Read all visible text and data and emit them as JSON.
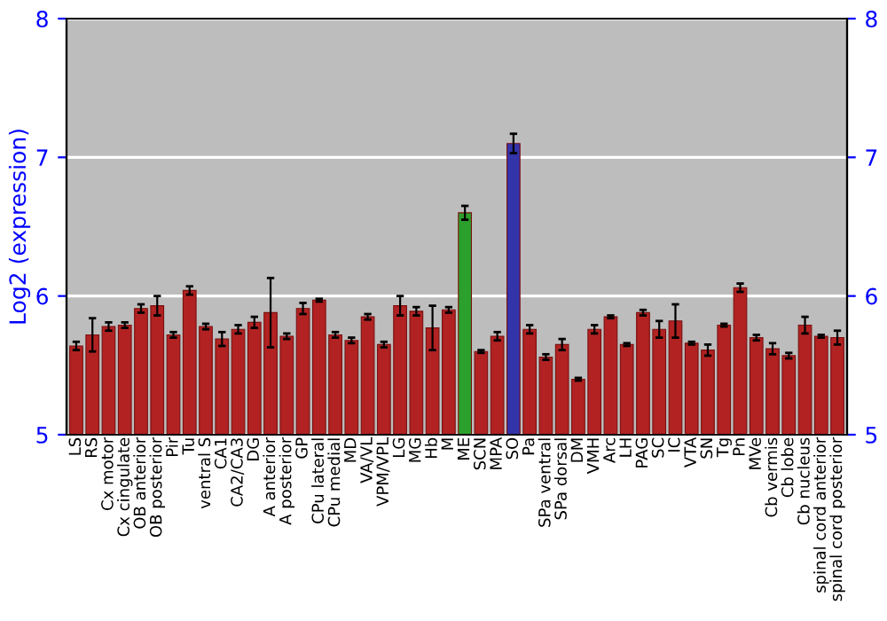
{
  "chart_data": {
    "type": "bar",
    "ylabel": "Log2 (expression)",
    "categories": [
      "LS",
      "RS",
      "Cx motor",
      "Cx cingulate",
      "OB anterior",
      "OB posterior",
      "Pir",
      "Tu",
      "ventral S",
      "CA1",
      "CA2/CA3",
      "DG",
      "A anterior",
      "A posterior",
      "GP",
      "CPu lateral",
      "CPu medial",
      "MD",
      "VA/VL",
      "VPM/VPL",
      "LG",
      "MG",
      "Hb",
      "M",
      "ME",
      "SCN",
      "MPA",
      "SO",
      "Pa",
      "SPa ventral",
      "SPa dorsal",
      "DM",
      "VMH",
      "Arc",
      "LH",
      "PAG",
      "SC",
      "IC",
      "VTA",
      "SN",
      "Tg",
      "Pn",
      "MVe",
      "Cb vermis",
      "Cb lobe",
      "Cb nucleus",
      "spinal cord anterior",
      "spinal cord posterior"
    ],
    "values": [
      5.64,
      5.72,
      5.78,
      5.79,
      5.91,
      5.93,
      5.72,
      6.04,
      5.78,
      5.69,
      5.76,
      5.81,
      5.88,
      5.71,
      5.91,
      5.97,
      5.72,
      5.68,
      5.85,
      5.65,
      5.93,
      5.89,
      5.77,
      5.9,
      6.6,
      5.6,
      5.71,
      7.1,
      5.76,
      5.56,
      5.65,
      5.4,
      5.76,
      5.85,
      5.65,
      5.88,
      5.76,
      5.82,
      5.66,
      5.61,
      5.79,
      6.06,
      5.7,
      5.62,
      5.57,
      5.79,
      5.71,
      5.7
    ],
    "errors": [
      0.03,
      0.12,
      0.03,
      0.02,
      0.03,
      0.07,
      0.02,
      0.03,
      0.02,
      0.05,
      0.03,
      0.04,
      0.25,
      0.02,
      0.04,
      0.01,
      0.02,
      0.02,
      0.02,
      0.02,
      0.07,
      0.03,
      0.16,
      0.02,
      0.05,
      0.01,
      0.03,
      0.07,
      0.03,
      0.02,
      0.04,
      0.01,
      0.03,
      0.01,
      0.01,
      0.02,
      0.06,
      0.12,
      0.01,
      0.04,
      0.01,
      0.03,
      0.02,
      0.04,
      0.02,
      0.06,
      0.01,
      0.05
    ],
    "colors": [
      "#b22222",
      "#b22222",
      "#b22222",
      "#b22222",
      "#b22222",
      "#b22222",
      "#b22222",
      "#b22222",
      "#b22222",
      "#b22222",
      "#b22222",
      "#b22222",
      "#b22222",
      "#b22222",
      "#b22222",
      "#b22222",
      "#b22222",
      "#b22222",
      "#b22222",
      "#b22222",
      "#b22222",
      "#b22222",
      "#b22222",
      "#b22222",
      "#2ca02c",
      "#b22222",
      "#b22222",
      "#3333aa",
      "#b22222",
      "#b22222",
      "#b22222",
      "#b22222",
      "#b22222",
      "#b22222",
      "#b22222",
      "#b22222",
      "#b22222",
      "#b22222",
      "#b22222",
      "#b22222",
      "#b22222",
      "#b22222",
      "#b22222",
      "#b22222",
      "#b22222",
      "#b22222",
      "#b22222",
      "#b22222"
    ],
    "ylim": [
      5,
      8
    ],
    "yticks": [
      5,
      6,
      7,
      8
    ],
    "y2lim": [
      5,
      8
    ],
    "y2ticks": [
      5,
      6,
      7,
      8
    ],
    "grid": "y"
  }
}
